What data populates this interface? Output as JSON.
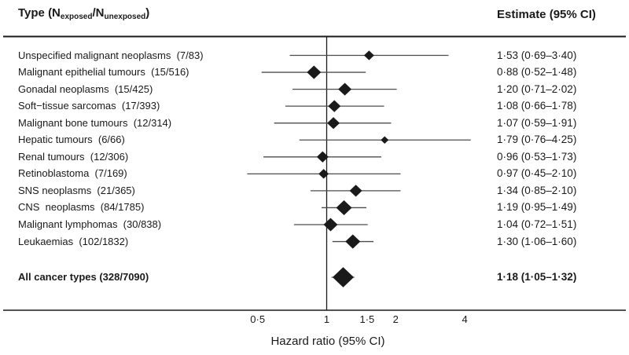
{
  "header": {
    "type_title": {
      "pre": "Type (N",
      "sub_exposed": "exposed",
      "mid": "/N",
      "sub_unexposed": "unexposed",
      "post": ")"
    },
    "estimate_title": "Estimate (95% CI)"
  },
  "chart_data": {
    "type": "forest",
    "x_scale": "log",
    "x_axis": {
      "label": "Hazard ratio (95% CI)",
      "ticks": [
        0.5,
        1,
        1.5,
        2,
        4
      ],
      "tick_labels": [
        "0·5",
        "1",
        "1·5",
        "2",
        "4"
      ],
      "reference_line": 1
    },
    "colors": {
      "diamond": "#1a1a1a",
      "ci_line": "#4d4d4d",
      "axis_line": "#1a1a1a",
      "text": "#1a1a1a",
      "background": "#ffffff"
    },
    "rows": [
      {
        "label": "Unspecified malignant neoplasms  (7/83)",
        "n_exposed": 7,
        "n_unexposed": 83,
        "hr": 1.53,
        "ci_low": 0.69,
        "ci_high": 3.4,
        "estimate": "1·53 (0·69–3·40)",
        "marker": 13,
        "bold": false,
        "summary": false
      },
      {
        "label": "Malignant epithelial tumours  (15/516)",
        "n_exposed": 15,
        "n_unexposed": 516,
        "hr": 0.88,
        "ci_low": 0.52,
        "ci_high": 1.48,
        "estimate": "0·88 (0·52–1·48)",
        "marker": 18,
        "bold": false,
        "summary": false
      },
      {
        "label": "Gonadal neoplasms  (15/425)",
        "n_exposed": 15,
        "n_unexposed": 425,
        "hr": 1.2,
        "ci_low": 0.71,
        "ci_high": 2.02,
        "estimate": "1·20 (0·71–2·02)",
        "marker": 17,
        "bold": false,
        "summary": false
      },
      {
        "label": "Soft−tissue sarcomas  (17/393)",
        "n_exposed": 17,
        "n_unexposed": 393,
        "hr": 1.08,
        "ci_low": 0.66,
        "ci_high": 1.78,
        "estimate": "1·08 (0·66–1·78)",
        "marker": 16,
        "bold": false,
        "summary": false
      },
      {
        "label": "Malignant bone tumours  (12/314)",
        "n_exposed": 12,
        "n_unexposed": 314,
        "hr": 1.07,
        "ci_low": 0.59,
        "ci_high": 1.91,
        "estimate": "1·07 (0·59–1·91)",
        "marker": 16,
        "bold": false,
        "summary": false
      },
      {
        "label": "Hepatic tumours  (6/66)",
        "n_exposed": 6,
        "n_unexposed": 66,
        "hr": 1.79,
        "ci_low": 0.76,
        "ci_high": 4.25,
        "estimate": "1·79 (0·76–4·25)",
        "marker": 10,
        "bold": false,
        "summary": false
      },
      {
        "label": "Renal tumours  (12/306)",
        "n_exposed": 12,
        "n_unexposed": 306,
        "hr": 0.96,
        "ci_low": 0.53,
        "ci_high": 1.73,
        "estimate": "0·96 (0·53–1·73)",
        "marker": 15,
        "bold": false,
        "summary": false
      },
      {
        "label": "Retinoblastoma  (7/169)",
        "n_exposed": 7,
        "n_unexposed": 169,
        "hr": 0.97,
        "ci_low": 0.45,
        "ci_high": 2.1,
        "estimate": "0·97 (0·45–2·10)",
        "marker": 13,
        "bold": false,
        "summary": false
      },
      {
        "label": "SNS neoplasms  (21/365)",
        "n_exposed": 21,
        "n_unexposed": 365,
        "hr": 1.34,
        "ci_low": 0.85,
        "ci_high": 2.1,
        "estimate": "1·34 (0·85–2·10)",
        "marker": 16,
        "bold": false,
        "summary": false
      },
      {
        "label": "CNS  neoplasms  (84/1785)",
        "n_exposed": 84,
        "n_unexposed": 1785,
        "hr": 1.19,
        "ci_low": 0.95,
        "ci_high": 1.49,
        "estimate": "1·19 (0·95–1·49)",
        "marker": 20,
        "bold": false,
        "summary": false
      },
      {
        "label": "Malignant lymphomas  (30/838)",
        "n_exposed": 30,
        "n_unexposed": 838,
        "hr": 1.04,
        "ci_low": 0.72,
        "ci_high": 1.51,
        "estimate": "1·04 (0·72–1·51)",
        "marker": 18,
        "bold": false,
        "summary": false
      },
      {
        "label": "Leukaemias  (102/1832)",
        "n_exposed": 102,
        "n_unexposed": 1832,
        "hr": 1.3,
        "ci_low": 1.06,
        "ci_high": 1.6,
        "estimate": "1·30 (1·06–1·60)",
        "marker": 19,
        "bold": false,
        "summary": false
      },
      {
        "label": "All cancer types (328/7090)",
        "n_exposed": 328,
        "n_unexposed": 7090,
        "hr": 1.18,
        "ci_low": 1.05,
        "ci_high": 1.32,
        "estimate": "1·18 (1·05–1·32)",
        "marker": 27,
        "bold": true,
        "summary": true
      }
    ]
  }
}
